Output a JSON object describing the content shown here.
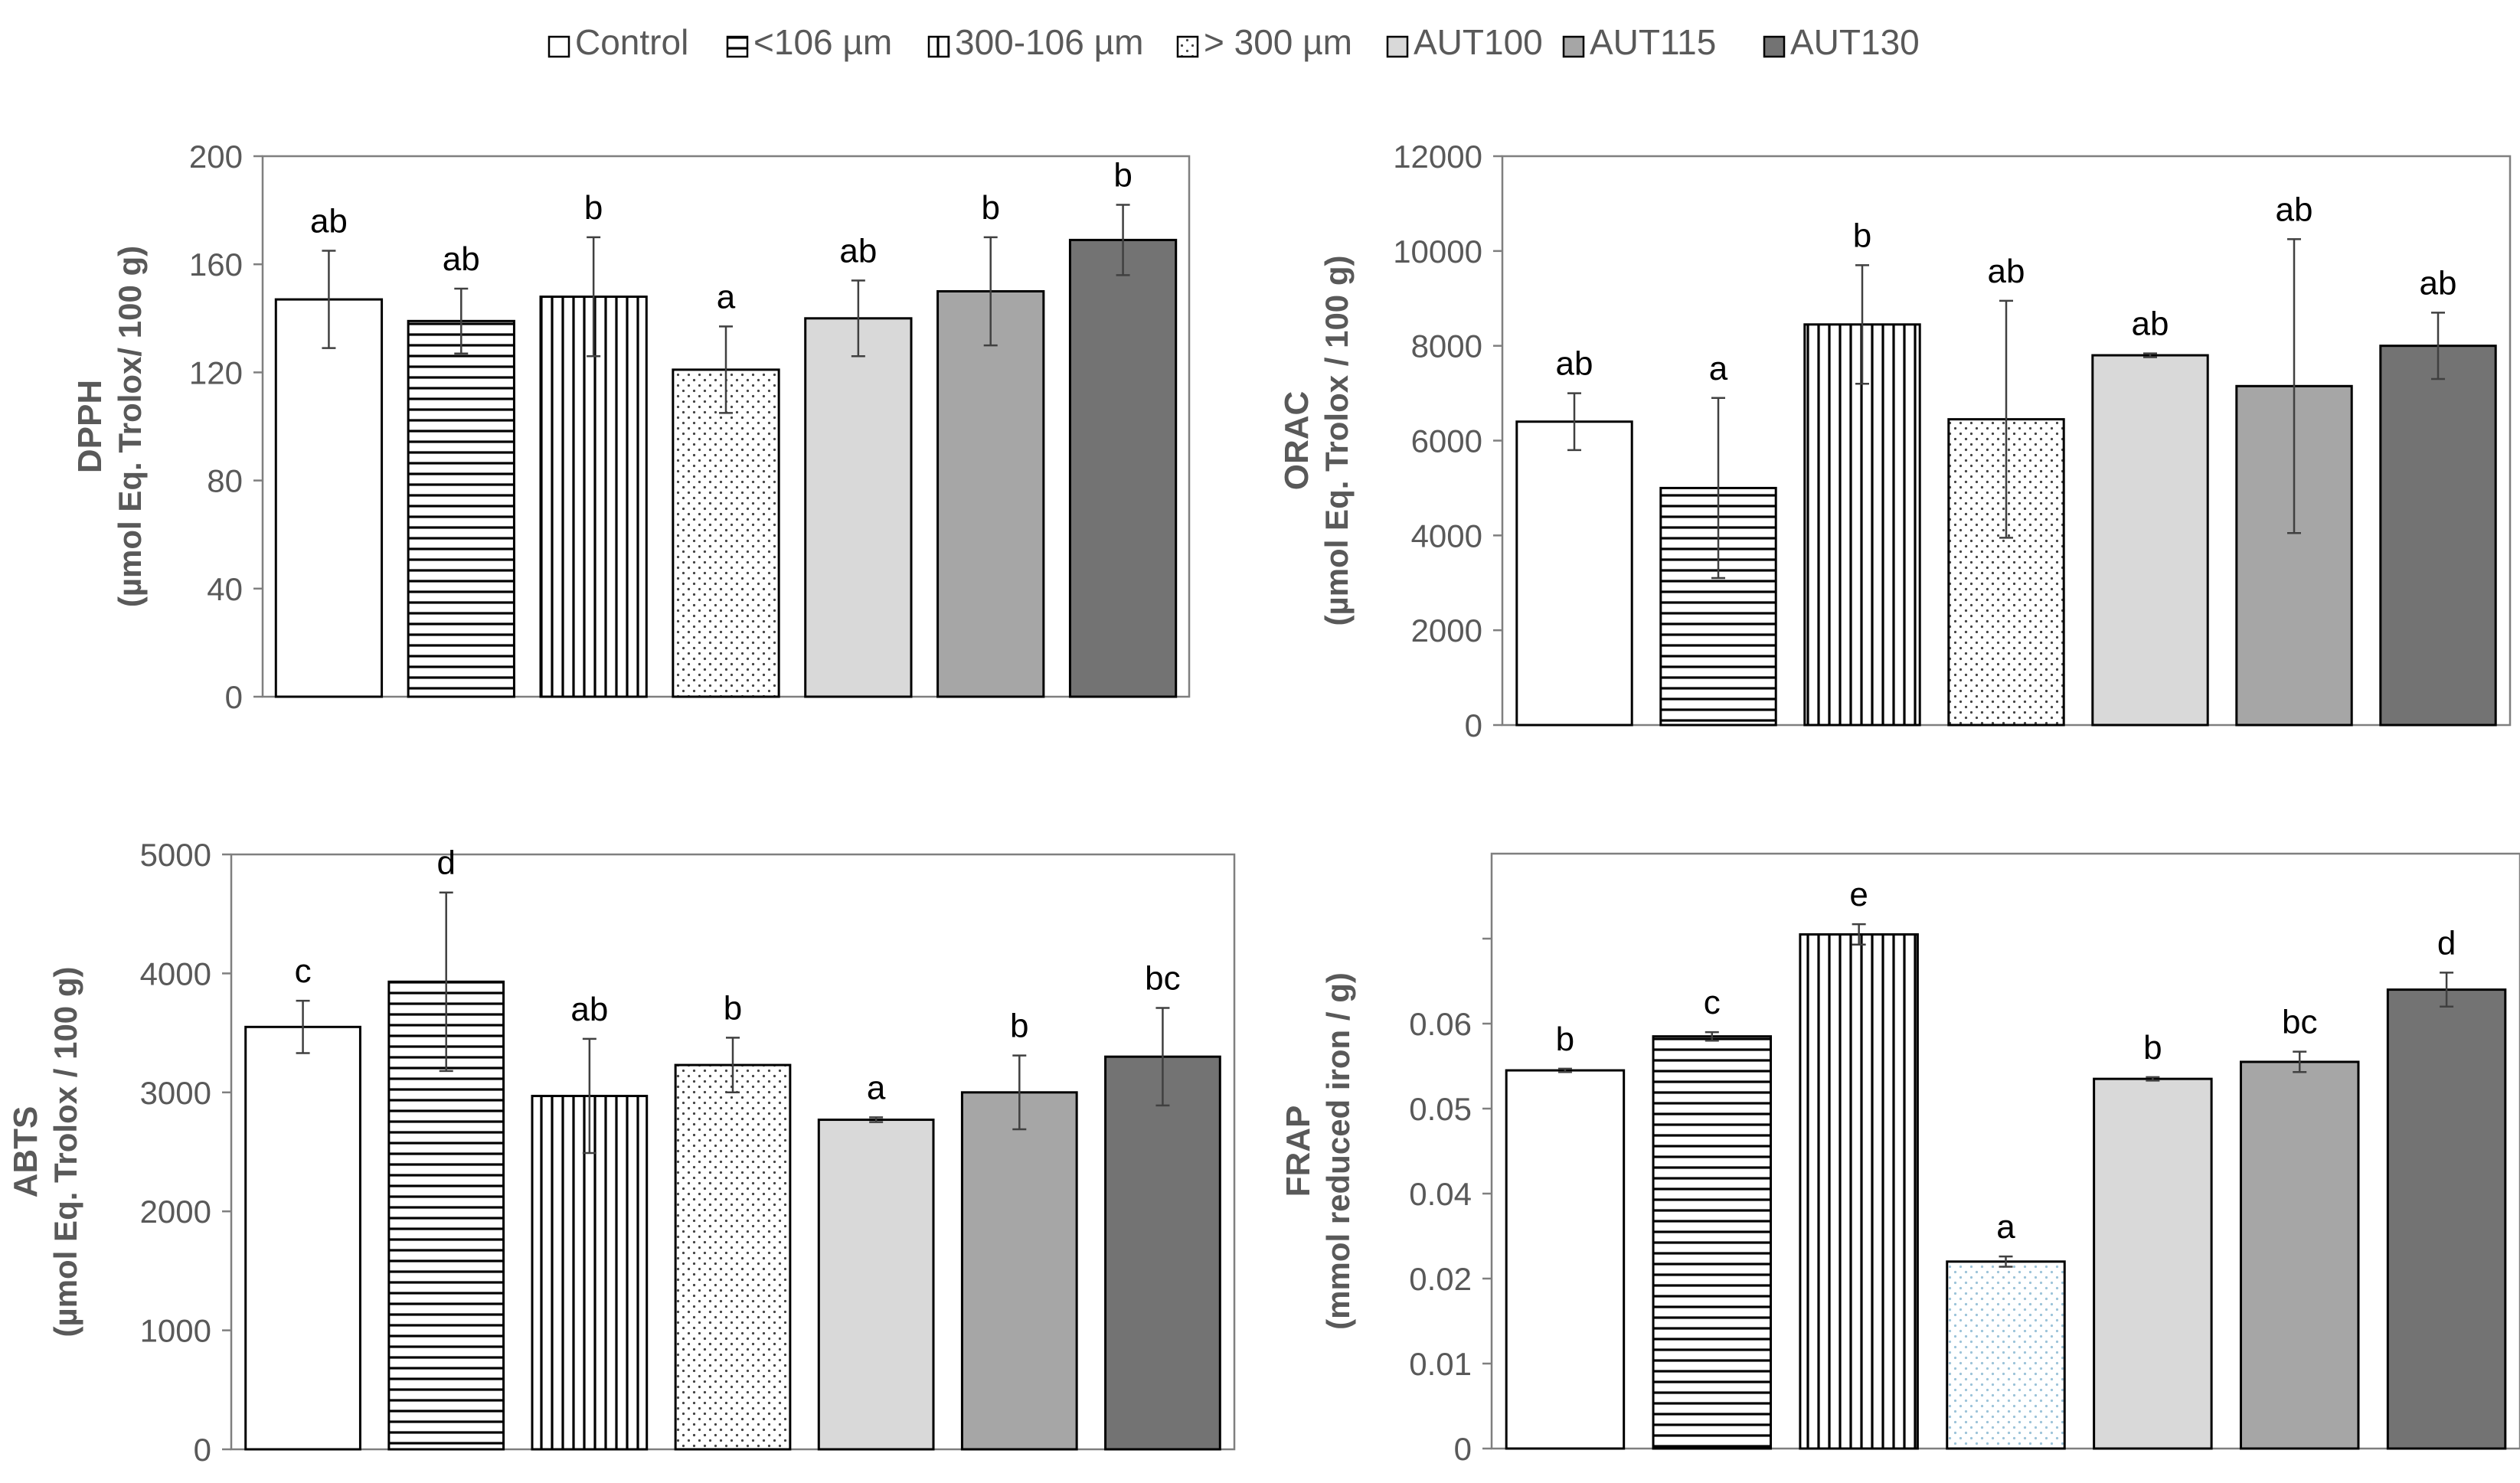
{
  "legend": {
    "entries": [
      {
        "key": "control",
        "label": "Control"
      },
      {
        "key": "lt106",
        "label": "<106 µm"
      },
      {
        "key": "mid",
        "label": "300-106 µm"
      },
      {
        "key": "gt300",
        "label": "> 300 µm"
      },
      {
        "key": "aut100",
        "label": "AUT100"
      },
      {
        "key": "aut115",
        "label": "AUT115"
      },
      {
        "key": "aut130",
        "label": "AUT130"
      }
    ]
  },
  "colors": {
    "control": "#ffffff",
    "lt106": "#ffffff",
    "mid": "#ffffff",
    "gt300": "#ffffff",
    "aut100": "#d9d9d9",
    "aut115": "#a6a6a6",
    "aut130": "#737373",
    "bar_stroke": "#000000",
    "axis": "#7f7f7f",
    "tick_text": "#595959",
    "error": "#404040"
  },
  "chart_data": [
    {
      "id": "dpph",
      "type": "bar",
      "ylabel_line1": "DPPH",
      "ylabel_line2": "(µmol Eq. Trolox/ 100 g)",
      "categories": [
        "Control",
        "<106 µm",
        "300-106 µm",
        "> 300 µm",
        "AUT100",
        "AUT115",
        "AUT130"
      ],
      "values": [
        147,
        139,
        148,
        121,
        140,
        150,
        169
      ],
      "errors": [
        18,
        12,
        22,
        16,
        14,
        20,
        13
      ],
      "letters": [
        "ab",
        "ab",
        "b",
        "a",
        "ab",
        "b",
        "b"
      ],
      "ylim": [
        0,
        200
      ],
      "yticks": [
        0,
        40,
        80,
        120,
        160,
        200
      ],
      "ytick_labels": [
        "0",
        "40",
        "80",
        "120",
        "160",
        "200"
      ]
    },
    {
      "id": "orac",
      "type": "bar",
      "ylabel_line1": "ORAC",
      "ylabel_line2": "(µmol Eq. Trolox  / 100 g)",
      "categories": [
        "Control",
        "<106 µm",
        "300-106 µm",
        "> 300 µm",
        "AUT100",
        "AUT115",
        "AUT130"
      ],
      "values": [
        6400,
        5000,
        8450,
        6450,
        7800,
        7150,
        8000
      ],
      "errors": [
        600,
        1900,
        1250,
        2500,
        40,
        3100,
        700
      ],
      "letters": [
        "ab",
        "a",
        "b",
        "ab",
        "ab",
        "ab",
        "ab"
      ],
      "ylim": [
        0,
        12000
      ],
      "yticks": [
        0,
        2000,
        4000,
        6000,
        8000,
        10000,
        12000
      ],
      "ytick_labels": [
        "0",
        "2000",
        "4000",
        "6000",
        "8000",
        "10000",
        "12000"
      ]
    },
    {
      "id": "abts",
      "type": "bar",
      "ylabel_line1": "ABTS",
      "ylabel_line2": "(µmol Eq. Trolox / 100 g)",
      "categories": [
        "Control",
        "<106 µm",
        "300-106 µm",
        "> 300 µm",
        "AUT100",
        "AUT115",
        "AUT130"
      ],
      "values": [
        3550,
        3930,
        2970,
        3230,
        2770,
        3000,
        3300
      ],
      "errors": [
        220,
        750,
        480,
        230,
        20,
        310,
        410
      ],
      "letters": [
        "c",
        "d",
        "ab",
        "b",
        "a",
        "b",
        "bc"
      ],
      "ylim": [
        0,
        5000
      ],
      "yticks": [
        0,
        1000,
        2000,
        3000,
        4000,
        5000
      ],
      "ytick_labels": [
        "0",
        "1000",
        "2000",
        "3000",
        "4000",
        "5000"
      ]
    },
    {
      "id": "frap",
      "type": "bar",
      "ylabel_line1": "FRAP",
      "ylabel_line2": "(mmol  reduced iron / g)",
      "categories": [
        "Control",
        "<106 µm",
        "300-106 µm",
        "> 300 µm",
        "AUT100",
        "AUT115",
        "AUT130"
      ],
      "values": [
        4.45,
        4.85,
        6.05,
        2.2,
        4.35,
        4.55,
        5.4
      ],
      "errors": [
        0.02,
        0.05,
        0.12,
        0.06,
        0.02,
        0.12,
        0.2
      ],
      "letters": [
        "b",
        "c",
        "e",
        "a",
        "b",
        "bc",
        "d"
      ],
      "ylim": [
        0,
        7
      ],
      "yticks": [
        0,
        1,
        2,
        3,
        4,
        5,
        6
      ],
      "ytick_labels": [
        "0",
        "0.01",
        "0.02",
        "0.04",
        "0.05",
        "0.06"
      ],
      "tick_label_positions": [
        0,
        1,
        2,
        3,
        4,
        5,
        6
      ],
      "tick_label_map": {
        "0": "0",
        "1": "0.01",
        "2": "0.02",
        "3": "0.04",
        "4": "0.05",
        "5": "0.06"
      }
    }
  ]
}
